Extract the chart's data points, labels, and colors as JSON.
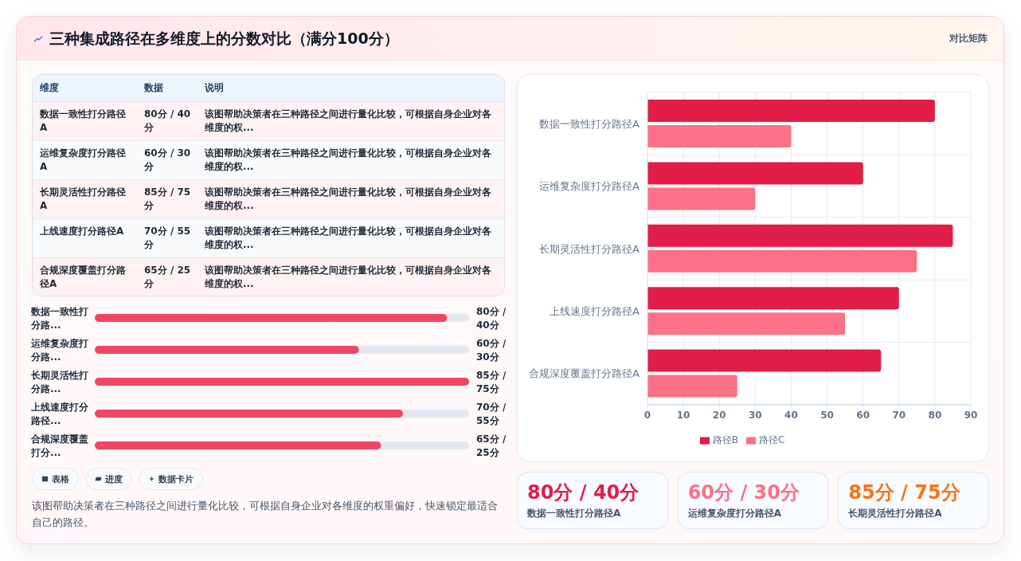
{
  "chart_data": [
    {
      "type": "other",
      "title": "三种集成路径在多维度上的分数对比（满分100分）",
      "annotations": [
        "对比矩阵"
      ]
    },
    {
      "type": "other",
      "categories": [
        "数据一致性打分路径A",
        "运维复杂度打分路径A",
        "长期灵活性打分路径A",
        "上线速度打分路径A",
        "合规深度覆盖打分路径A"
      ],
      "value_labels": [
        "80分 / 40分",
        "60分 / 30分",
        "85分 / 75分",
        "70分 / 55分",
        "65分 / 25分"
      ],
      "annotations": [
        "维度",
        "数据",
        "说明",
        "该图帮助决策者在三种路径之间进行量化比较，可根据自身企业对各维度的权...",
        "该图帮助决策者在三种路径之间进行量化比较，可根据自身企业对各维度的权...",
        "该图帮助决策者在三种路径之间进行量化比较，可根据自身企业对各维度的权...",
        "该图帮助决策者在三种路径之间进行量化比较，可根据自身企业对各维度的权...",
        "该图帮助决策者在三种路径之间进行量化比较，可根据自身企业对各维度的权..."
      ]
    },
    {
      "type": "bar",
      "orientation": "horizontal",
      "categories": [
        "数据一致性打分路...",
        "运维复杂度打分路...",
        "长期灵活性打分路...",
        "上线速度打分路径...",
        "合规深度覆盖打分..."
      ],
      "values": [
        80,
        60,
        85,
        70,
        65
      ],
      "value_labels": [
        "80分 / 40分",
        "60分 / 30分",
        "85分 / 75分",
        "70分 / 55分",
        "65分 / 25分"
      ],
      "color": "#ee4766",
      "tick_labels": "y",
      "annotations": [
        "表格",
        "进度",
        "数据卡片",
        "该图帮助决策者在三种路径之间进行量化比较，可根据自身企业对各维度的权重偏好，快速锁定最适合自己的路径。"
      ]
    },
    {
      "type": "bar",
      "orientation": "horizontal",
      "categories": [
        "数据一致性打分路径A",
        "运维复杂度打分路径A",
        "长期灵活性打分路径A",
        "上线速度打分路径A",
        "合规深度覆盖打分路径A"
      ],
      "series": [
        {
          "name": "路径B",
          "color": "#e11d48",
          "values": [
            80,
            60,
            85,
            70,
            65
          ]
        },
        {
          "name": "路径C",
          "color": "#fb7185",
          "values": [
            40,
            30,
            75,
            55,
            25
          ]
        }
      ],
      "xlim": [
        0,
        90
      ],
      "xticks": [
        0,
        10,
        20,
        30,
        40,
        50,
        60,
        70,
        80,
        90
      ],
      "grid": true,
      "legend": "bottom"
    },
    {
      "type": "other",
      "categories": [
        "数据一致性打分路径A",
        "运维复杂度打分路径A",
        "长期灵活性打分路径A"
      ],
      "value_labels": [
        "80分 / 40分",
        "60分 / 30分",
        "85分 / 75分"
      ]
    }
  ]
}
